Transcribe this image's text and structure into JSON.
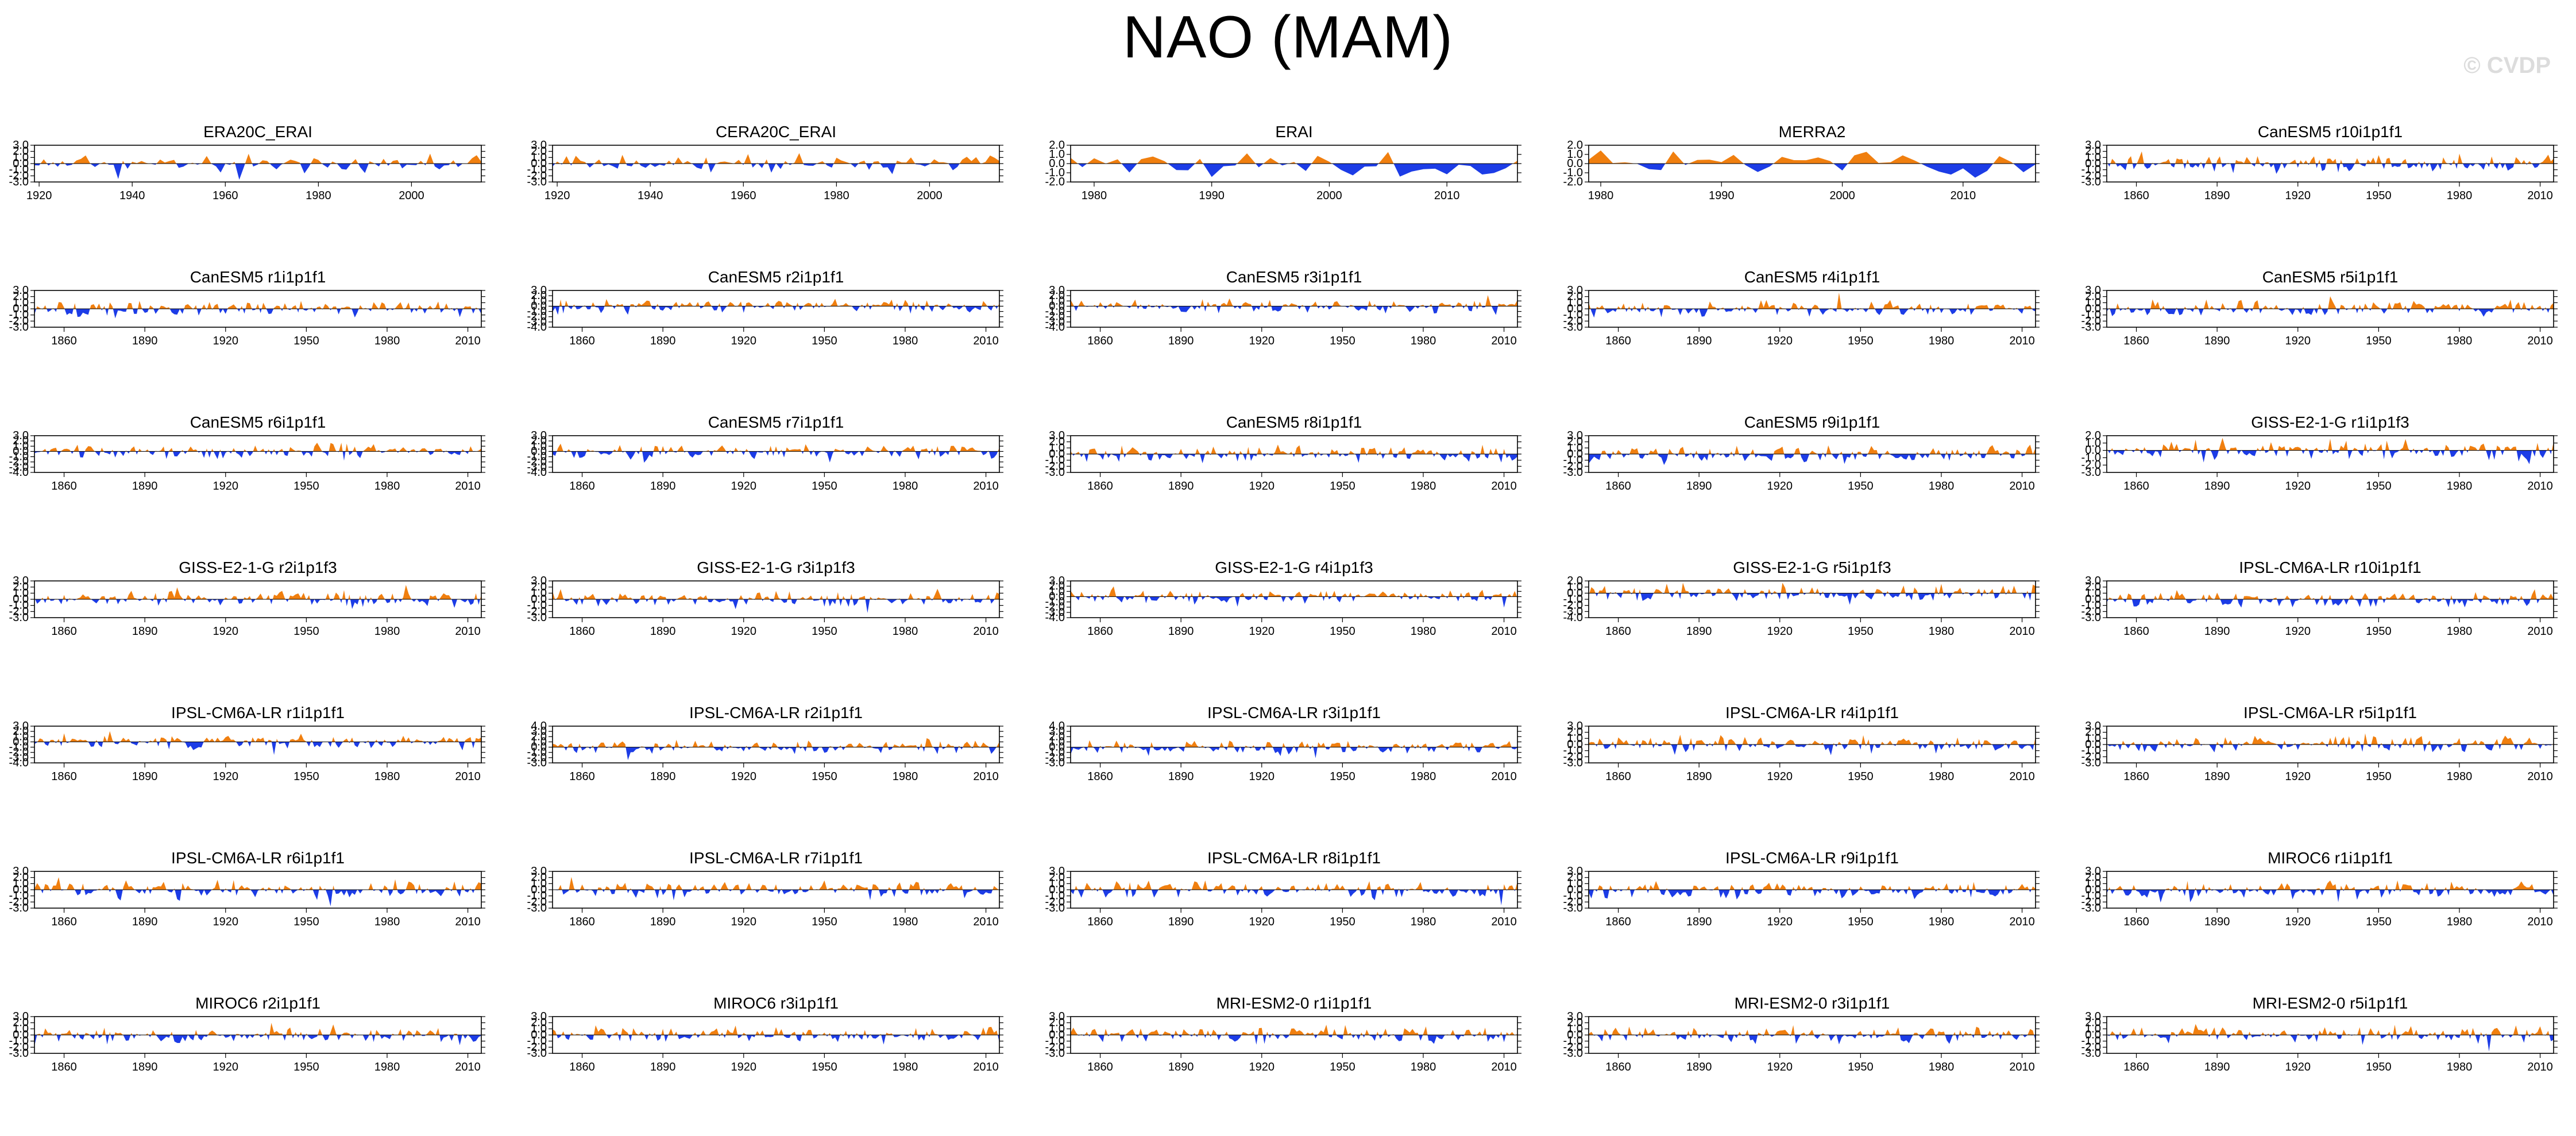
{
  "title": "NAO (MAM)",
  "watermark": "© CVDP",
  "colors": {
    "positive": "#f07f0f",
    "negative": "#1c3ce6",
    "axis": "#000000",
    "zero_line": "#000000"
  },
  "chart_data": [
    {
      "type": "area",
      "title": "ERA20C_ERAI",
      "xrange": [
        1919,
        2015
      ],
      "xticks": [
        1920,
        1940,
        1960,
        1980,
        2000
      ],
      "yticks": [
        "3.0",
        "2.0",
        "1.0",
        "0.0",
        "-1.0",
        "-2.0",
        "-3.0"
      ],
      "ylim": [
        -3,
        3
      ],
      "seed": 11,
      "amp": 1.1
    },
    {
      "type": "area",
      "title": "CERA20C_ERAI",
      "xrange": [
        1919,
        2015
      ],
      "xticks": [
        1920,
        1940,
        1960,
        1980,
        2000
      ],
      "yticks": [
        "3.0",
        "2.0",
        "1.0",
        "0.0",
        "-1.0",
        "-2.0",
        "-3.0"
      ],
      "ylim": [
        -3,
        3
      ],
      "seed": 12,
      "amp": 1.1
    },
    {
      "type": "area",
      "title": "ERAI",
      "xrange": [
        1978,
        2016
      ],
      "xticks": [
        1980,
        1990,
        2000,
        2010
      ],
      "yticks": [
        "2.0",
        "1.0",
        "0.0",
        "-1.0",
        "-2.0"
      ],
      "ylim": [
        -2,
        2
      ],
      "seed": 13,
      "amp": 1.0
    },
    {
      "type": "area",
      "title": "MERRA2",
      "xrange": [
        1979,
        2016
      ],
      "xticks": [
        1980,
        1990,
        2000,
        2010
      ],
      "yticks": [
        "2.0",
        "1.0",
        "0.0",
        "-1.0",
        "-2.0"
      ],
      "ylim": [
        -2,
        2
      ],
      "seed": 14,
      "amp": 1.0
    },
    {
      "type": "area",
      "title": "CanESM5 r10i1p1f1",
      "xrange": [
        1849,
        2015
      ],
      "xticks": [
        1860,
        1890,
        1920,
        1950,
        1980,
        2010
      ],
      "yticks": [
        "3.0",
        "2.0",
        "1.0",
        "0.0",
        "-1.0",
        "-2.0",
        "-3.0"
      ],
      "ylim": [
        -3,
        3
      ],
      "seed": 15,
      "amp": 1.0
    },
    {
      "type": "area",
      "title": "CanESM5 r1i1p1f1",
      "xrange": [
        1849,
        2015
      ],
      "xticks": [
        1860,
        1890,
        1920,
        1950,
        1980,
        2010
      ],
      "yticks": [
        "3.0",
        "2.0",
        "1.0",
        "0.0",
        "-1.0",
        "-2.0",
        "-3.0"
      ],
      "ylim": [
        -3,
        3
      ],
      "seed": 21,
      "amp": 1.0
    },
    {
      "type": "area",
      "title": "CanESM5 r2i1p1f1",
      "xrange": [
        1849,
        2015
      ],
      "xticks": [
        1860,
        1890,
        1920,
        1950,
        1980,
        2010
      ],
      "yticks": [
        "3.0",
        "2.0",
        "1.0",
        "0.0",
        "-1.0",
        "-2.0",
        "-3.0",
        "-4.0"
      ],
      "ylim": [
        -4,
        3
      ],
      "seed": 22,
      "amp": 1.0
    },
    {
      "type": "area",
      "title": "CanESM5 r3i1p1f1",
      "xrange": [
        1849,
        2015
      ],
      "xticks": [
        1860,
        1890,
        1920,
        1950,
        1980,
        2010
      ],
      "yticks": [
        "3.0",
        "2.0",
        "1.0",
        "0.0",
        "-1.0",
        "-2.0",
        "-3.0",
        "-4.0"
      ],
      "ylim": [
        -4,
        3
      ],
      "seed": 23,
      "amp": 1.0
    },
    {
      "type": "area",
      "title": "CanESM5 r4i1p1f1",
      "xrange": [
        1849,
        2015
      ],
      "xticks": [
        1860,
        1890,
        1920,
        1950,
        1980,
        2010
      ],
      "yticks": [
        "3.0",
        "2.0",
        "1.0",
        "0.0",
        "-1.0",
        "-2.0",
        "-3.0"
      ],
      "ylim": [
        -3,
        3
      ],
      "seed": 24,
      "amp": 1.0
    },
    {
      "type": "area",
      "title": "CanESM5 r5i1p1f1",
      "xrange": [
        1849,
        2015
      ],
      "xticks": [
        1860,
        1890,
        1920,
        1950,
        1980,
        2010
      ],
      "yticks": [
        "3.0",
        "2.0",
        "1.0",
        "0.0",
        "-1.0",
        "-2.0",
        "-3.0"
      ],
      "ylim": [
        -3,
        3
      ],
      "seed": 25,
      "amp": 1.0
    },
    {
      "type": "area",
      "title": "CanESM5 r6i1p1f1",
      "xrange": [
        1849,
        2015
      ],
      "xticks": [
        1860,
        1890,
        1920,
        1950,
        1980,
        2010
      ],
      "yticks": [
        "3.0",
        "2.0",
        "1.0",
        "0.0",
        "-1.0",
        "-2.0",
        "-3.0",
        "-4.0"
      ],
      "ylim": [
        -4,
        3
      ],
      "seed": 31,
      "amp": 1.0
    },
    {
      "type": "area",
      "title": "CanESM5 r7i1p1f1",
      "xrange": [
        1849,
        2015
      ],
      "xticks": [
        1860,
        1890,
        1920,
        1950,
        1980,
        2010
      ],
      "yticks": [
        "3.0",
        "2.0",
        "1.0",
        "0.0",
        "-1.0",
        "-2.0",
        "-3.0",
        "-4.0"
      ],
      "ylim": [
        -4,
        3
      ],
      "seed": 32,
      "amp": 1.0
    },
    {
      "type": "area",
      "title": "CanESM5 r8i1p1f1",
      "xrange": [
        1849,
        2015
      ],
      "xticks": [
        1860,
        1890,
        1920,
        1950,
        1980,
        2010
      ],
      "yticks": [
        "3.0",
        "2.0",
        "1.0",
        "0.0",
        "-1.0",
        "-2.0",
        "-3.0"
      ],
      "ylim": [
        -3,
        3
      ],
      "seed": 33,
      "amp": 1.0
    },
    {
      "type": "area",
      "title": "CanESM5 r9i1p1f1",
      "xrange": [
        1849,
        2015
      ],
      "xticks": [
        1860,
        1890,
        1920,
        1950,
        1980,
        2010
      ],
      "yticks": [
        "3.0",
        "2.0",
        "1.0",
        "0.0",
        "-1.0",
        "-2.0",
        "-3.0"
      ],
      "ylim": [
        -3,
        3
      ],
      "seed": 34,
      "amp": 1.0
    },
    {
      "type": "area",
      "title": "GISS-E2-1-G r1i1p1f3",
      "xrange": [
        1849,
        2015
      ],
      "xticks": [
        1860,
        1890,
        1920,
        1950,
        1980,
        2010
      ],
      "yticks": [
        "2.0",
        "1.0",
        "0.0",
        "-1.0",
        "-2.0",
        "-3.0"
      ],
      "ylim": [
        -3,
        2
      ],
      "seed": 35,
      "amp": 1.0
    },
    {
      "type": "area",
      "title": "GISS-E2-1-G r2i1p1f3",
      "xrange": [
        1849,
        2015
      ],
      "xticks": [
        1860,
        1890,
        1920,
        1950,
        1980,
        2010
      ],
      "yticks": [
        "3.0",
        "2.0",
        "1.0",
        "0.0",
        "-1.0",
        "-2.0",
        "-3.0"
      ],
      "ylim": [
        -3,
        3
      ],
      "seed": 41,
      "amp": 1.0
    },
    {
      "type": "area",
      "title": "GISS-E2-1-G r3i1p1f3",
      "xrange": [
        1849,
        2015
      ],
      "xticks": [
        1860,
        1890,
        1920,
        1950,
        1980,
        2010
      ],
      "yticks": [
        "3.0",
        "2.0",
        "1.0",
        "0.0",
        "-1.0",
        "-2.0",
        "-3.0"
      ],
      "ylim": [
        -3,
        3
      ],
      "seed": 42,
      "amp": 1.0
    },
    {
      "type": "area",
      "title": "GISS-E2-1-G r4i1p1f3",
      "xrange": [
        1849,
        2015
      ],
      "xticks": [
        1860,
        1890,
        1920,
        1950,
        1980,
        2010
      ],
      "yticks": [
        "3.0",
        "2.0",
        "1.0",
        "0.0",
        "-1.0",
        "-2.0",
        "-3.0",
        "-4.0"
      ],
      "ylim": [
        -4,
        3
      ],
      "seed": 43,
      "amp": 1.0
    },
    {
      "type": "area",
      "title": "GISS-E2-1-G r5i1p1f3",
      "xrange": [
        1849,
        2015
      ],
      "xticks": [
        1860,
        1890,
        1920,
        1950,
        1980,
        2010
      ],
      "yticks": [
        "2.0",
        "1.0",
        "0.0",
        "-1.0",
        "-2.0",
        "-3.0",
        "-4.0"
      ],
      "ylim": [
        -4,
        2
      ],
      "seed": 44,
      "amp": 1.0
    },
    {
      "type": "area",
      "title": "IPSL-CM6A-LR r10i1p1f1",
      "xrange": [
        1849,
        2015
      ],
      "xticks": [
        1860,
        1890,
        1920,
        1950,
        1980,
        2010
      ],
      "yticks": [
        "3.0",
        "2.0",
        "1.0",
        "0.0",
        "-1.0",
        "-2.0",
        "-3.0"
      ],
      "ylim": [
        -3,
        3
      ],
      "seed": 45,
      "amp": 1.0
    },
    {
      "type": "area",
      "title": "IPSL-CM6A-LR r1i1p1f1",
      "xrange": [
        1849,
        2015
      ],
      "xticks": [
        1860,
        1890,
        1920,
        1950,
        1980,
        2010
      ],
      "yticks": [
        "3.0",
        "2.0",
        "1.0",
        "0.0",
        "-1.0",
        "-2.0",
        "-3.0",
        "-4.0"
      ],
      "ylim": [
        -4,
        3
      ],
      "seed": 51,
      "amp": 1.0
    },
    {
      "type": "area",
      "title": "IPSL-CM6A-LR r2i1p1f1",
      "xrange": [
        1849,
        2015
      ],
      "xticks": [
        1860,
        1890,
        1920,
        1950,
        1980,
        2010
      ],
      "yticks": [
        "4.0",
        "3.0",
        "2.0",
        "1.0",
        "0.0",
        "-1.0",
        "-2.0",
        "-3.0"
      ],
      "ylim": [
        -3,
        4
      ],
      "seed": 52,
      "amp": 1.0
    },
    {
      "type": "area",
      "title": "IPSL-CM6A-LR r3i1p1f1",
      "xrange": [
        1849,
        2015
      ],
      "xticks": [
        1860,
        1890,
        1920,
        1950,
        1980,
        2010
      ],
      "yticks": [
        "4.0",
        "3.0",
        "2.0",
        "1.0",
        "0.0",
        "-1.0",
        "-2.0",
        "-3.0"
      ],
      "ylim": [
        -3,
        4
      ],
      "seed": 53,
      "amp": 1.0
    },
    {
      "type": "area",
      "title": "IPSL-CM6A-LR r4i1p1f1",
      "xrange": [
        1849,
        2015
      ],
      "xticks": [
        1860,
        1890,
        1920,
        1950,
        1980,
        2010
      ],
      "yticks": [
        "3.0",
        "2.0",
        "1.0",
        "0.0",
        "-1.0",
        "-2.0",
        "-3.0"
      ],
      "ylim": [
        -3,
        3
      ],
      "seed": 54,
      "amp": 1.0
    },
    {
      "type": "area",
      "title": "IPSL-CM6A-LR r5i1p1f1",
      "xrange": [
        1849,
        2015
      ],
      "xticks": [
        1860,
        1890,
        1920,
        1950,
        1980,
        2010
      ],
      "yticks": [
        "3.0",
        "2.0",
        "1.0",
        "0.0",
        "-1.0",
        "-2.0",
        "-3.0"
      ],
      "ylim": [
        -3,
        3
      ],
      "seed": 55,
      "amp": 1.0
    },
    {
      "type": "area",
      "title": "IPSL-CM6A-LR r6i1p1f1",
      "xrange": [
        1849,
        2015
      ],
      "xticks": [
        1860,
        1890,
        1920,
        1950,
        1980,
        2010
      ],
      "yticks": [
        "3.0",
        "2.0",
        "1.0",
        "0.0",
        "-1.0",
        "-2.0",
        "-3.0"
      ],
      "ylim": [
        -3,
        3
      ],
      "seed": 61,
      "amp": 1.0
    },
    {
      "type": "area",
      "title": "IPSL-CM6A-LR r7i1p1f1",
      "xrange": [
        1849,
        2015
      ],
      "xticks": [
        1860,
        1890,
        1920,
        1950,
        1980,
        2010
      ],
      "yticks": [
        "3.0",
        "2.0",
        "1.0",
        "0.0",
        "-1.0",
        "-2.0",
        "-3.0"
      ],
      "ylim": [
        -3,
        3
      ],
      "seed": 62,
      "amp": 1.0
    },
    {
      "type": "area",
      "title": "IPSL-CM6A-LR r8i1p1f1",
      "xrange": [
        1849,
        2015
      ],
      "xticks": [
        1860,
        1890,
        1920,
        1950,
        1980,
        2010
      ],
      "yticks": [
        "3.0",
        "2.0",
        "1.0",
        "0.0",
        "-1.0",
        "-2.0",
        "-3.0"
      ],
      "ylim": [
        -3,
        3
      ],
      "seed": 63,
      "amp": 1.0
    },
    {
      "type": "area",
      "title": "IPSL-CM6A-LR r9i1p1f1",
      "xrange": [
        1849,
        2015
      ],
      "xticks": [
        1860,
        1890,
        1920,
        1950,
        1980,
        2010
      ],
      "yticks": [
        "3.0",
        "2.0",
        "1.0",
        "0.0",
        "-1.0",
        "-2.0",
        "-3.0"
      ],
      "ylim": [
        -3,
        3
      ],
      "seed": 64,
      "amp": 1.0
    },
    {
      "type": "area",
      "title": "MIROC6 r1i1p1f1",
      "xrange": [
        1849,
        2015
      ],
      "xticks": [
        1860,
        1890,
        1920,
        1950,
        1980,
        2010
      ],
      "yticks": [
        "3.0",
        "2.0",
        "1.0",
        "0.0",
        "-1.0",
        "-2.0",
        "-3.0"
      ],
      "ylim": [
        -3,
        3
      ],
      "seed": 65,
      "amp": 1.0
    },
    {
      "type": "area",
      "title": "MIROC6 r2i1p1f1",
      "xrange": [
        1849,
        2015
      ],
      "xticks": [
        1860,
        1890,
        1920,
        1950,
        1980,
        2010
      ],
      "yticks": [
        "3.0",
        "2.0",
        "1.0",
        "0.0",
        "-1.0",
        "-2.0",
        "-3.0"
      ],
      "ylim": [
        -3,
        3
      ],
      "seed": 71,
      "amp": 1.0
    },
    {
      "type": "area",
      "title": "MIROC6 r3i1p1f1",
      "xrange": [
        1849,
        2015
      ],
      "xticks": [
        1860,
        1890,
        1920,
        1950,
        1980,
        2010
      ],
      "yticks": [
        "3.0",
        "2.0",
        "1.0",
        "0.0",
        "-1.0",
        "-2.0",
        "-3.0"
      ],
      "ylim": [
        -3,
        3
      ],
      "seed": 72,
      "amp": 1.0
    },
    {
      "type": "area",
      "title": "MRI-ESM2-0 r1i1p1f1",
      "xrange": [
        1849,
        2015
      ],
      "xticks": [
        1860,
        1890,
        1920,
        1950,
        1980,
        2010
      ],
      "yticks": [
        "3.0",
        "2.0",
        "1.0",
        "0.0",
        "-1.0",
        "-2.0",
        "-3.0"
      ],
      "ylim": [
        -3,
        3
      ],
      "seed": 73,
      "amp": 1.0
    },
    {
      "type": "area",
      "title": "MRI-ESM2-0 r3i1p1f1",
      "xrange": [
        1849,
        2015
      ],
      "xticks": [
        1860,
        1890,
        1920,
        1950,
        1980,
        2010
      ],
      "yticks": [
        "3.0",
        "2.0",
        "1.0",
        "0.0",
        "-1.0",
        "-2.0",
        "-3.0"
      ],
      "ylim": [
        -3,
        3
      ],
      "seed": 74,
      "amp": 1.0
    },
    {
      "type": "area",
      "title": "MRI-ESM2-0 r5i1p1f1",
      "xrange": [
        1849,
        2015
      ],
      "xticks": [
        1860,
        1890,
        1920,
        1950,
        1980,
        2010
      ],
      "yticks": [
        "3.0",
        "2.0",
        "1.0",
        "0.0",
        "-1.0",
        "-2.0",
        "-3.0"
      ],
      "ylim": [
        -3,
        3
      ],
      "seed": 75,
      "amp": 1.0
    }
  ]
}
